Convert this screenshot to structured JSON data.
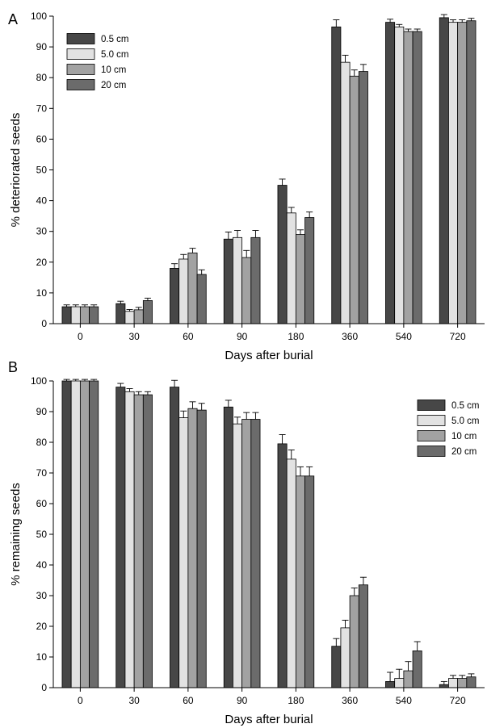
{
  "figure": {
    "colors": {
      "0.5 cm": "#474747",
      "5.0 cm": "#e2e2e2",
      "10 cm": "#a2a2a2",
      "20 cm": "#6b6b6b"
    }
  },
  "chart_data": [
    {
      "type": "bar",
      "panel_label": "A",
      "xlabel": "Days after burial",
      "ylabel": "% deteriorated seeds",
      "ylim": [
        0,
        100
      ],
      "yticks": [
        "0",
        "10",
        "20",
        "30",
        "40",
        "50",
        "60",
        "70",
        "80",
        "90",
        "100"
      ],
      "categories": [
        "0",
        "30",
        "60",
        "90",
        "180",
        "360",
        "540",
        "720"
      ],
      "legend_position": "top-left",
      "grid": false,
      "series": [
        {
          "name": "0.5 cm",
          "values": [
            5.5,
            6.5,
            18.0,
            27.5,
            45.0,
            96.5,
            98.0,
            99.5
          ],
          "errors": [
            0.6,
            0.8,
            1.5,
            2.3,
            2.0,
            2.3,
            1.0,
            1.0
          ]
        },
        {
          "name": "5.0 cm",
          "values": [
            5.5,
            4.0,
            21.0,
            28.0,
            36.0,
            85.0,
            96.5,
            98.0
          ],
          "errors": [
            0.6,
            0.6,
            1.5,
            2.3,
            1.8,
            2.3,
            0.8,
            0.8
          ]
        },
        {
          "name": "10 cm",
          "values": [
            5.5,
            4.5,
            23.0,
            21.5,
            29.0,
            80.5,
            95.0,
            98.0
          ],
          "errors": [
            0.6,
            0.8,
            1.5,
            2.3,
            1.5,
            2.0,
            0.8,
            0.8
          ]
        },
        {
          "name": "20 cm",
          "values": [
            5.5,
            7.5,
            16.0,
            28.0,
            34.5,
            82.0,
            95.0,
            98.5
          ],
          "errors": [
            0.6,
            0.8,
            1.5,
            2.3,
            1.8,
            2.3,
            0.8,
            0.8
          ]
        }
      ]
    },
    {
      "type": "bar",
      "panel_label": "B",
      "xlabel": "Days after burial",
      "ylabel": "% remaining seeds",
      "ylim": [
        0,
        100
      ],
      "yticks": [
        "0",
        "10",
        "20",
        "30",
        "40",
        "50",
        "60",
        "70",
        "80",
        "90",
        "100"
      ],
      "categories": [
        "0",
        "30",
        "60",
        "90",
        "180",
        "360",
        "540",
        "720"
      ],
      "legend_position": "top-right",
      "grid": false,
      "series": [
        {
          "name": "0.5 cm",
          "values": [
            100,
            98.0,
            98.0,
            91.5,
            79.5,
            13.5,
            2.0,
            1.0
          ],
          "errors": [
            0.5,
            1.2,
            2.2,
            2.2,
            3.0,
            2.5,
            3.0,
            1.0
          ]
        },
        {
          "name": "5.0 cm",
          "values": [
            100,
            96.5,
            88.0,
            86.0,
            74.5,
            19.5,
            3.0,
            3.0
          ],
          "errors": [
            0.5,
            1.0,
            2.2,
            2.2,
            3.0,
            2.5,
            3.0,
            1.0
          ]
        },
        {
          "name": "10 cm",
          "values": [
            100,
            95.5,
            91.0,
            87.5,
            69.0,
            30.0,
            5.5,
            3.0
          ],
          "errors": [
            0.5,
            1.0,
            2.2,
            2.2,
            3.0,
            2.5,
            3.0,
            1.0
          ]
        },
        {
          "name": "20 cm",
          "values": [
            100,
            95.5,
            90.5,
            87.5,
            69.0,
            33.5,
            12.0,
            3.5
          ],
          "errors": [
            0.5,
            1.0,
            2.2,
            2.2,
            3.0,
            2.5,
            3.0,
            1.0
          ]
        }
      ]
    }
  ]
}
